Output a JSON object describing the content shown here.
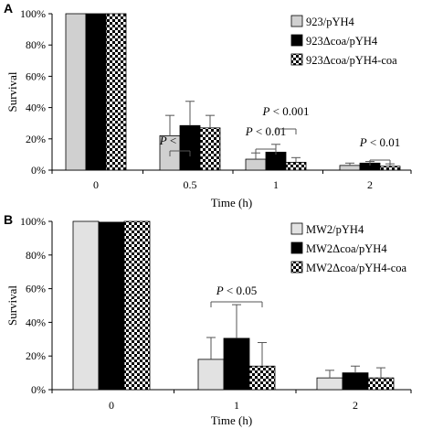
{
  "chart_data": [
    {
      "panel": "A",
      "type": "bar",
      "ylabel": "Survival",
      "xlabel": "Time (h)",
      "ylim": [
        0,
        100
      ],
      "yticks": [
        "0%",
        "20%",
        "40%",
        "60%",
        "80%",
        "100%"
      ],
      "categories": [
        "0",
        "0.5",
        "1",
        "2"
      ],
      "legend_position": "top-right",
      "series": [
        {
          "name": "923/pYH4",
          "fill": "#d0d0d0",
          "values": [
            100,
            22,
            7,
            3
          ],
          "errors": [
            0,
            13,
            4,
            1.5
          ]
        },
        {
          "name": "923Δcoa/pYH4",
          "fill": "#000000",
          "values": [
            100,
            28.5,
            11.5,
            4.5
          ],
          "errors": [
            0,
            15.5,
            5,
            1
          ]
        },
        {
          "name": "923Δcoa/pYH4-coa",
          "fill": "checker",
          "values": [
            100,
            27,
            5,
            2.5
          ],
          "errors": [
            0,
            8,
            3,
            1.5
          ]
        }
      ],
      "annotations": [
        {
          "text_prefix": "P",
          "text_suffix": " < 0.05",
          "group": 1,
          "from": 0,
          "to": 1
        },
        {
          "text_prefix": "P",
          "text_suffix": " < 0.01",
          "group": 2,
          "from": 0,
          "to": 1
        },
        {
          "text_prefix": "P",
          "text_suffix": " < 0.001",
          "group": 2,
          "from": 1,
          "to": 2
        },
        {
          "text_prefix": "P",
          "text_suffix": " < 0.01",
          "group": 3,
          "from": 1,
          "to": 2
        }
      ]
    },
    {
      "panel": "B",
      "type": "bar",
      "ylabel": "Survival",
      "xlabel": "Time (h)",
      "ylim": [
        0,
        100
      ],
      "yticks": [
        "0%",
        "20%",
        "40%",
        "60%",
        "80%",
        "100%"
      ],
      "categories": [
        "0",
        "1",
        "2"
      ],
      "legend_position": "top-right",
      "series": [
        {
          "name": "MW2/pYH4",
          "fill": "#e2e2e2",
          "values": [
            100,
            18,
            7
          ],
          "errors": [
            0,
            13,
            4.5
          ]
        },
        {
          "name": "MW2Δcoa/pYH4",
          "fill": "#000000",
          "values": [
            99.5,
            30.5,
            10
          ],
          "errors": [
            0,
            20,
            4
          ]
        },
        {
          "name": "MW2Δcoa/pYH4-coa",
          "fill": "checker",
          "values": [
            100,
            14,
            7
          ],
          "errors": [
            0,
            14,
            6
          ]
        }
      ],
      "annotations": [
        {
          "text_prefix": "P",
          "text_suffix": " < 0.05",
          "group": 1,
          "from": 0,
          "to": 2
        }
      ]
    }
  ]
}
